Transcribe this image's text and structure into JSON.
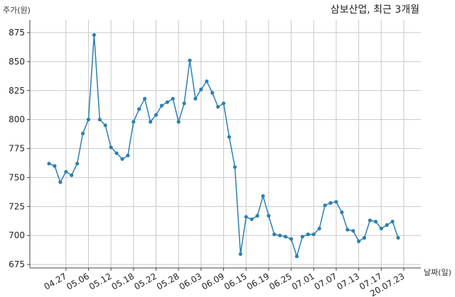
{
  "chart_data": {
    "type": "line",
    "title": "삼보산업, 최근 3개월",
    "ylabel": "주가(원)",
    "xlabel": "날짜(일)",
    "ylim": [
      672,
      886
    ],
    "yticks": [
      675,
      700,
      725,
      750,
      775,
      800,
      825,
      850,
      875
    ],
    "xticks": [
      {
        "index": 3,
        "label": "04.27"
      },
      {
        "index": 7,
        "label": "05.06"
      },
      {
        "index": 11,
        "label": "05.12"
      },
      {
        "index": 15,
        "label": "05.18"
      },
      {
        "index": 19,
        "label": "05.22"
      },
      {
        "index": 23,
        "label": "05.28"
      },
      {
        "index": 27,
        "label": "06.03"
      },
      {
        "index": 31,
        "label": "06.09"
      },
      {
        "index": 35,
        "label": "06.15"
      },
      {
        "index": 39,
        "label": "06.19"
      },
      {
        "index": 43,
        "label": "06.25"
      },
      {
        "index": 47,
        "label": "07.01"
      },
      {
        "index": 51,
        "label": "07.07"
      },
      {
        "index": 55,
        "label": "07.13"
      },
      {
        "index": 59,
        "label": "07.17"
      },
      {
        "index": 63,
        "label": "20.07.23"
      }
    ],
    "grid": true,
    "line_color": "#2e7fb0",
    "series": [
      {
        "values": [
          762,
          760,
          746,
          755,
          752,
          762,
          788,
          800,
          873,
          800,
          795,
          776,
          771,
          766,
          769,
          798,
          809,
          818,
          798,
          804,
          812,
          815,
          818,
          798,
          814,
          851,
          818,
          826,
          833,
          823,
          811,
          814,
          785,
          759,
          684,
          716,
          714,
          717,
          734,
          717,
          701,
          700,
          699,
          697,
          682,
          699,
          701,
          701,
          706,
          726,
          728,
          729,
          720,
          705,
          704,
          695,
          698,
          713,
          712,
          706,
          709,
          712,
          698
        ]
      }
    ]
  }
}
